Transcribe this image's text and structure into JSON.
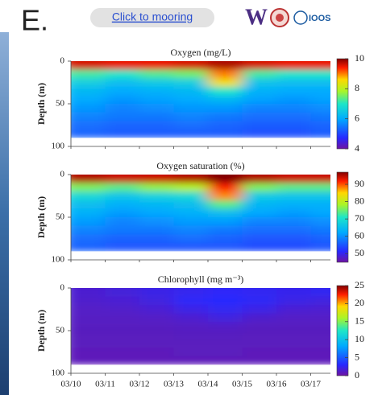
{
  "header": {
    "panel_label": "E.",
    "link": "Click to mooring",
    "logos": [
      "W",
      "IOOS"
    ]
  },
  "chart_data": [
    {
      "type": "heatmap",
      "title": "Oxygen (mg/L)",
      "ylabel": "Depth (m)",
      "ylim": [
        0,
        100
      ],
      "yticks": [
        0,
        50,
        100
      ],
      "depth": [
        5,
        15,
        25,
        35,
        45,
        55,
        65,
        75,
        85
      ],
      "clim": [
        4,
        10
      ],
      "cticks": [
        4,
        6,
        8,
        10
      ],
      "z": [
        [
          9.6,
          9.5,
          9.5,
          9.6,
          9.8,
          9.6,
          9.5,
          9.5
        ],
        [
          7.2,
          7.0,
          7.3,
          7.5,
          9.0,
          7.2,
          7.0,
          7.0
        ],
        [
          6.6,
          6.3,
          6.5,
          6.6,
          8.5,
          6.4,
          6.3,
          6.3
        ],
        [
          6.2,
          6.0,
          6.1,
          6.2,
          7.0,
          6.1,
          6.0,
          6.0
        ],
        [
          6.0,
          5.8,
          5.9,
          6.0,
          6.2,
          5.9,
          5.8,
          5.9
        ],
        [
          5.8,
          5.6,
          5.7,
          5.8,
          5.8,
          5.6,
          5.6,
          5.7
        ],
        [
          5.6,
          5.5,
          5.5,
          5.6,
          5.5,
          5.4,
          5.4,
          5.5
        ],
        [
          5.4,
          5.3,
          5.3,
          5.4,
          5.3,
          5.2,
          5.2,
          5.3
        ],
        [
          5.3,
          5.2,
          5.2,
          5.2,
          5.2,
          5.1,
          5.1,
          5.2
        ]
      ]
    },
    {
      "type": "heatmap",
      "title": "Oxygen saturation (%)",
      "ylabel": "Depth (m)",
      "ylim": [
        0,
        100
      ],
      "yticks": [
        0,
        50,
        100
      ],
      "depth": [
        5,
        15,
        25,
        35,
        45,
        55,
        65,
        75,
        85
      ],
      "clim": [
        45,
        97
      ],
      "cticks": [
        50,
        60,
        70,
        80,
        90
      ],
      "z": [
        [
          95,
          94,
          94,
          95,
          97,
          95,
          94,
          94
        ],
        [
          76,
          74,
          77,
          79,
          92,
          76,
          74,
          74
        ],
        [
          69,
          66,
          68,
          69,
          88,
          67,
          66,
          66
        ],
        [
          65,
          63,
          64,
          65,
          74,
          64,
          63,
          63
        ],
        [
          63,
          61,
          62,
          63,
          65,
          62,
          61,
          62
        ],
        [
          61,
          59,
          60,
          61,
          61,
          59,
          59,
          60
        ],
        [
          59,
          58,
          58,
          59,
          58,
          57,
          57,
          58
        ],
        [
          57,
          56,
          56,
          57,
          56,
          55,
          55,
          56
        ],
        [
          56,
          55,
          55,
          55,
          55,
          54,
          54,
          55
        ]
      ]
    },
    {
      "type": "heatmap",
      "title": "Chlorophyll (mg m⁻³)",
      "ylabel": "Depth (m)",
      "ylim": [
        0,
        100
      ],
      "yticks": [
        0,
        50,
        100
      ],
      "depth": [
        5,
        15,
        25,
        35,
        45,
        55,
        65,
        75,
        85
      ],
      "clim": [
        0,
        25
      ],
      "cticks": [
        0,
        5,
        10,
        15,
        20,
        25
      ],
      "categories": [
        "03/10",
        "03/11",
        "03/12",
        "03/13",
        "03/14",
        "03/15",
        "03/16",
        "03/17"
      ],
      "z": [
        [
          1.5,
          1.8,
          2.2,
          2.5,
          2.8,
          2.6,
          2.4,
          2.6
        ],
        [
          1.4,
          1.6,
          2.0,
          2.8,
          3.0,
          2.7,
          2.2,
          2.0
        ],
        [
          1.2,
          1.3,
          1.6,
          2.2,
          2.6,
          2.2,
          1.6,
          1.5
        ],
        [
          1.1,
          1.1,
          1.2,
          1.5,
          2.0,
          1.4,
          1.2,
          1.2
        ],
        [
          1.0,
          1.0,
          1.0,
          1.1,
          1.2,
          1.0,
          1.0,
          1.0
        ],
        [
          0.9,
          0.9,
          0.9,
          1.0,
          1.0,
          0.9,
          0.9,
          0.9
        ],
        [
          0.9,
          0.9,
          0.9,
          0.9,
          0.9,
          0.9,
          0.9,
          0.9
        ],
        [
          0.8,
          0.8,
          0.8,
          0.9,
          0.9,
          0.8,
          0.8,
          0.8
        ],
        [
          0.8,
          0.8,
          0.8,
          0.8,
          0.8,
          0.8,
          0.8,
          0.8
        ]
      ]
    }
  ]
}
